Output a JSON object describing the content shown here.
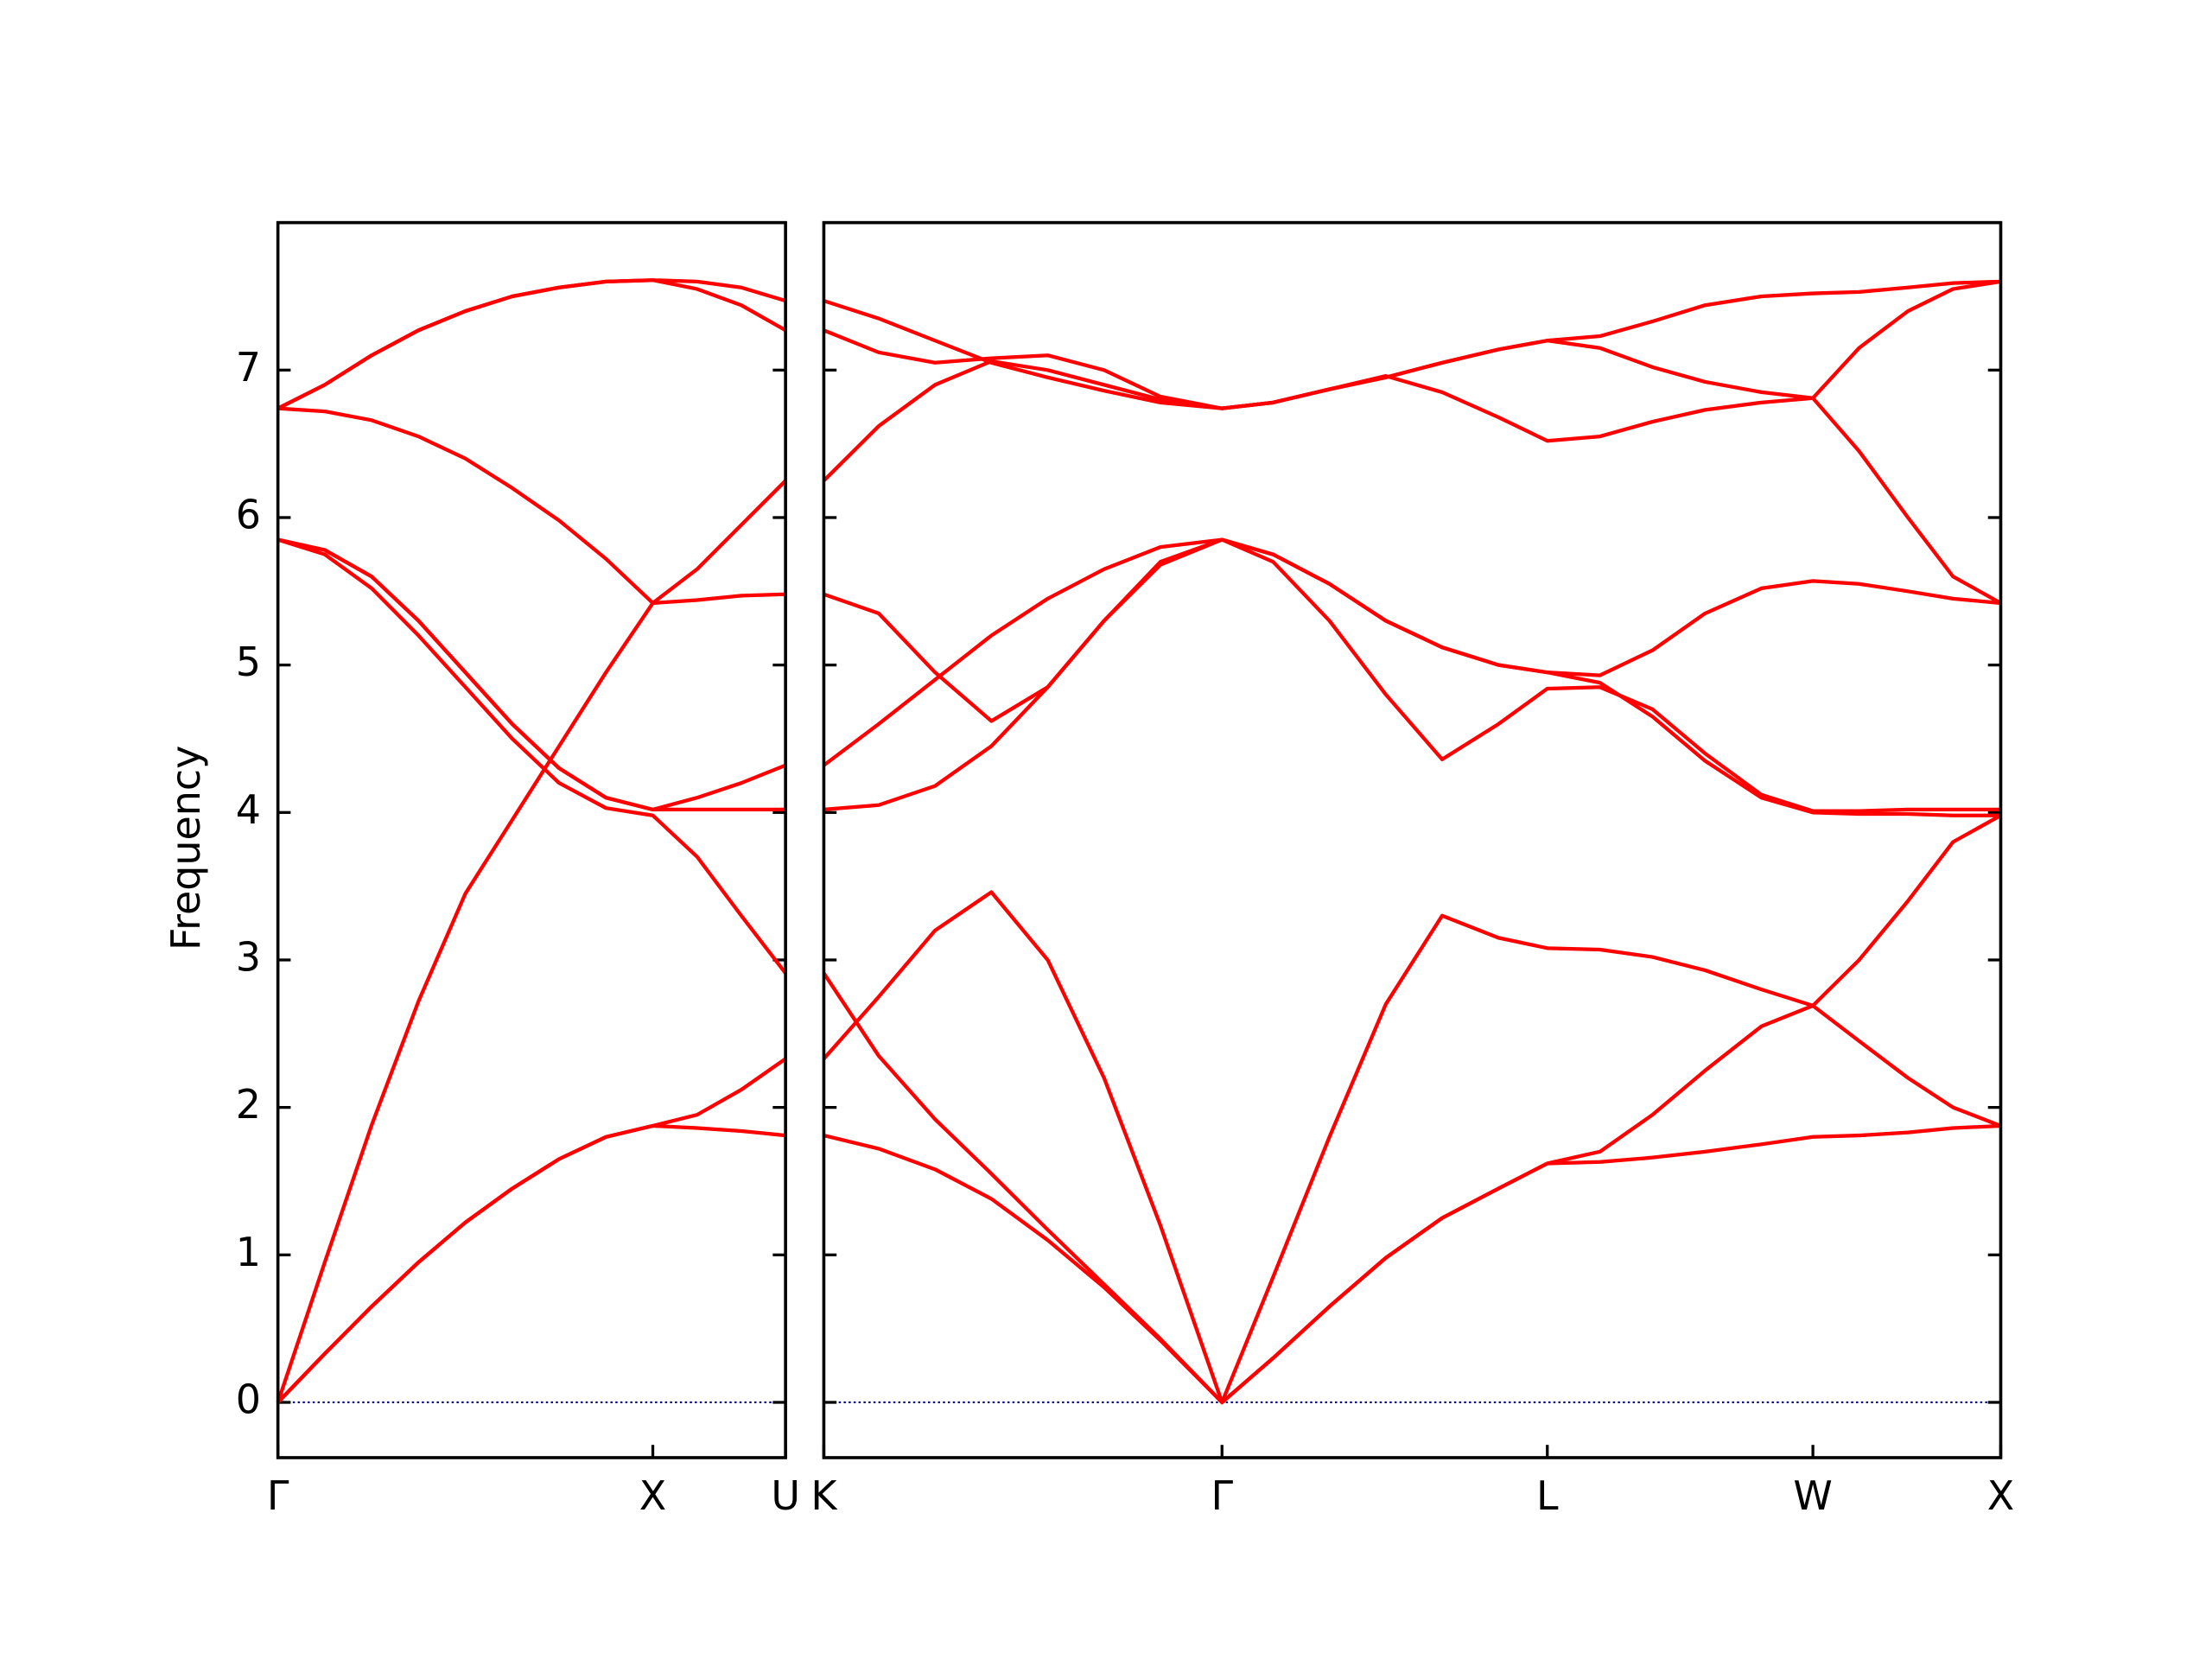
{
  "chart_data": [
    {
      "type": "line",
      "ylabel": "Frequency",
      "xlim": [
        0,
        1.354
      ],
      "ylim": [
        -0.375,
        8
      ],
      "xticks": [
        {
          "value": 0,
          "label": "Γ"
        },
        {
          "value": 1,
          "label": "X"
        },
        {
          "value": 1.354,
          "label": "U"
        }
      ],
      "yticks": [
        0,
        1,
        2,
        3,
        4,
        5,
        6,
        7
      ],
      "hline": 0,
      "hline_color": "#00008b",
      "x": [
        0,
        0.125,
        0.25,
        0.375,
        0.5,
        0.625,
        0.75,
        0.875,
        1.0,
        1.118,
        1.236,
        1.354
      ],
      "series": [
        {
          "color": "#ff0000",
          "values": [
            0,
            0.33,
            0.65,
            0.95,
            1.22,
            1.45,
            1.65,
            1.8,
            1.875,
            1.86,
            1.84,
            1.81
          ]
        },
        {
          "color": "#ff0000",
          "values": [
            0,
            0.33,
            0.65,
            0.95,
            1.22,
            1.45,
            1.65,
            1.8,
            1.875,
            1.95,
            2.12,
            2.33
          ]
        },
        {
          "color": "#ff0000",
          "values": [
            0,
            0.95,
            1.88,
            2.72,
            3.45,
            3.95,
            4.45,
            4.95,
            5.42,
            5.65,
            5.95,
            6.25
          ]
        },
        {
          "color": "#ff0000",
          "values": [
            5.85,
            5.78,
            5.6,
            5.3,
            4.95,
            4.6,
            4.3,
            4.1,
            4.02,
            4.1,
            4.2,
            4.32
          ]
        },
        {
          "color": "#ff0000",
          "values": [
            5.85,
            5.78,
            5.6,
            5.3,
            4.95,
            4.6,
            4.3,
            4.1,
            4.02,
            4.02,
            4.02,
            4.02
          ]
        },
        {
          "color": "#ff0000",
          "values": [
            5.85,
            5.75,
            5.52,
            5.2,
            4.85,
            4.5,
            4.2,
            4.03,
            3.98,
            3.7,
            3.3,
            2.91
          ]
        },
        {
          "color": "#ff0000",
          "values": [
            6.74,
            6.72,
            6.66,
            6.55,
            6.4,
            6.2,
            5.98,
            5.72,
            5.42,
            5.44,
            5.47,
            5.48
          ]
        },
        {
          "color": "#ff0000",
          "values": [
            6.74,
            6.9,
            7.1,
            7.27,
            7.4,
            7.5,
            7.56,
            7.6,
            7.61,
            7.6,
            7.56,
            7.47
          ]
        },
        {
          "color": "#ff0000",
          "values": [
            6.74,
            6.9,
            7.1,
            7.27,
            7.4,
            7.5,
            7.56,
            7.6,
            7.61,
            7.55,
            7.44,
            7.27
          ]
        }
      ]
    },
    {
      "type": "line",
      "xlim": [
        1.354,
        4.487
      ],
      "xticks": [
        {
          "value": 1.354,
          "label": "K"
        },
        {
          "value": 2.414,
          "label": "Γ"
        },
        {
          "value": 3.28,
          "label": "L"
        },
        {
          "value": 3.987,
          "label": "W"
        },
        {
          "value": 4.487,
          "label": "X"
        }
      ],
      "hline": 0,
      "hline_color": "#00008b",
      "x": [
        1.354,
        1.5,
        1.65,
        1.8,
        1.95,
        2.1,
        2.25,
        2.414,
        2.55,
        2.7,
        2.85,
        3.0,
        3.15,
        3.28,
        3.42,
        3.56,
        3.7,
        3.85,
        3.987,
        4.11,
        4.24,
        4.36,
        4.487
      ],
      "series": [
        {
          "color": "#ff0000",
          "values": [
            1.81,
            1.72,
            1.58,
            1.38,
            1.1,
            0.78,
            0.42,
            0,
            0.3,
            0.65,
            0.98,
            1.25,
            1.45,
            1.62,
            1.63,
            1.66,
            1.7,
            1.75,
            1.8,
            1.81,
            1.83,
            1.86,
            1.875
          ]
        },
        {
          "color": "#ff0000",
          "values": [
            2.91,
            2.35,
            1.92,
            1.55,
            1.17,
            0.8,
            0.43,
            0,
            0.3,
            0.65,
            0.98,
            1.25,
            1.45,
            1.62,
            1.7,
            1.95,
            2.25,
            2.55,
            2.69,
            2.45,
            2.2,
            2.0,
            1.875
          ]
        },
        {
          "color": "#ff0000",
          "values": [
            2.33,
            2.75,
            3.2,
            3.46,
            3.0,
            2.2,
            1.2,
            0,
            0.85,
            1.8,
            2.7,
            3.3,
            3.15,
            3.08,
            3.07,
            3.02,
            2.93,
            2.8,
            2.69,
            3.0,
            3.4,
            3.8,
            3.98
          ]
        },
        {
          "color": "#ff0000",
          "values": [
            4.02,
            4.05,
            4.18,
            4.45,
            4.85,
            5.3,
            5.68,
            5.85,
            5.7,
            5.3,
            4.8,
            4.36,
            4.6,
            4.84,
            4.85,
            4.7,
            4.4,
            4.12,
            4.01,
            4.01,
            4.02,
            4.02,
            4.02
          ]
        },
        {
          "color": "#ff0000",
          "values": [
            4.32,
            4.6,
            4.9,
            5.2,
            5.45,
            5.65,
            5.8,
            5.85,
            5.75,
            5.55,
            5.3,
            5.12,
            5.0,
            4.95,
            4.88,
            4.65,
            4.35,
            4.1,
            4.0,
            3.99,
            3.99,
            3.98,
            3.98
          ]
        },
        {
          "color": "#ff0000",
          "values": [
            5.48,
            5.35,
            4.95,
            4.62,
            4.85,
            5.3,
            5.7,
            5.85,
            5.75,
            5.55,
            5.3,
            5.12,
            5.0,
            4.95,
            4.93,
            5.1,
            5.35,
            5.52,
            5.57,
            5.55,
            5.5,
            5.45,
            5.42
          ]
        },
        {
          "color": "#ff0000",
          "values": [
            6.25,
            6.62,
            6.9,
            7.06,
            7.0,
            6.9,
            6.8,
            6.74,
            6.78,
            6.87,
            6.96,
            6.85,
            6.68,
            6.52,
            6.55,
            6.65,
            6.73,
            6.78,
            6.81,
            6.45,
            6.0,
            5.6,
            5.42
          ]
        },
        {
          "color": "#ff0000",
          "values": [
            7.27,
            7.12,
            7.05,
            7.08,
            7.1,
            7.0,
            6.82,
            6.74,
            6.78,
            6.87,
            6.95,
            7.05,
            7.14,
            7.2,
            7.15,
            7.02,
            6.92,
            6.85,
            6.81,
            7.15,
            7.4,
            7.55,
            7.6
          ]
        },
        {
          "color": "#ff0000",
          "values": [
            7.47,
            7.35,
            7.2,
            7.05,
            6.95,
            6.86,
            6.78,
            6.74,
            6.78,
            6.87,
            6.95,
            7.05,
            7.14,
            7.2,
            7.23,
            7.33,
            7.44,
            7.5,
            7.52,
            7.53,
            7.56,
            7.59,
            7.6
          ]
        }
      ]
    }
  ]
}
